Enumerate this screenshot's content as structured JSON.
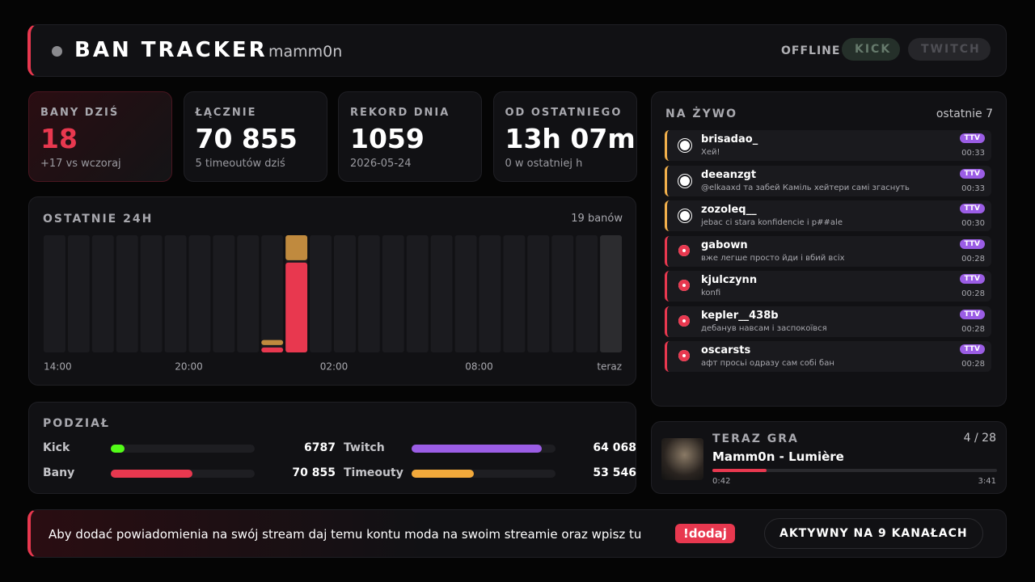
{
  "header": {
    "title": "BAN TRACKER",
    "channel": "mamm0n",
    "status": "OFFLINE",
    "platforms": [
      "KICK",
      "TWITCH"
    ]
  },
  "stats": [
    {
      "label": "BANY DZIŚ",
      "value": "18",
      "sub": "+17 vs wczoraj"
    },
    {
      "label": "ŁĄCZNIE",
      "value": "70 855",
      "sub": "5 timeoutów dziś"
    },
    {
      "label": "REKORD DNIA",
      "value": "1059",
      "sub": "2026-05-24"
    },
    {
      "label": "OD OSTATNIEGO",
      "value": "13h 07m",
      "sub": "0 w ostatniej h"
    }
  ],
  "chart_data": {
    "type": "bar",
    "stacked": true,
    "title": "OSTATNIE 24H",
    "summary": "19 banów",
    "categories": [
      "14:00",
      null,
      null,
      null,
      null,
      null,
      "20:00",
      null,
      null,
      null,
      null,
      null,
      "02:00",
      null,
      null,
      null,
      null,
      null,
      "08:00",
      null,
      null,
      null,
      null,
      "teraz"
    ],
    "series": [
      {
        "color": "#e8384f",
        "values": [
          0,
          0,
          0,
          0,
          0,
          0,
          0,
          0,
          0,
          1,
          18,
          0,
          0,
          0,
          0,
          0,
          0,
          0,
          0,
          0,
          0,
          0,
          0,
          0
        ]
      },
      {
        "color": "#c08a3e",
        "values": [
          0,
          0,
          0,
          0,
          0,
          0,
          0,
          0,
          0,
          1,
          5,
          0,
          0,
          0,
          0,
          0,
          0,
          0,
          0,
          0,
          0,
          0,
          0,
          0
        ]
      }
    ]
  },
  "split": {
    "title": "PODZIAŁ",
    "groups": [
      [
        {
          "name": "Kick",
          "value": 6787,
          "color": "#53fc18"
        },
        {
          "name": "Twitch",
          "value": 64068,
          "value_label": "64 068",
          "color": "#9b5de5"
        }
      ],
      [
        {
          "name": "Bany",
          "value": 70855,
          "value_label": "70 855",
          "color": "#e8384f"
        },
        {
          "name": "Timeouty",
          "value": 53546,
          "value_label": "53 546",
          "color": "#f2a93b"
        }
      ]
    ]
  },
  "live": {
    "title": "NA ŻYWO",
    "subtitle": "ostatnie 7",
    "items": [
      {
        "kind": "timeout",
        "user": "brisadao_",
        "message": "Хей!",
        "badge": "TTV",
        "time": "00:33"
      },
      {
        "kind": "timeout",
        "user": "deeanzgt",
        "message": "@elkaaxd та забей Каміль хейтери самі згаснуть",
        "badge": "TTV",
        "time": "00:33"
      },
      {
        "kind": "timeout",
        "user": "zozoleq__",
        "message": "jebac ci stara konfidencie i p##ale",
        "badge": "TTV",
        "time": "00:30"
      },
      {
        "kind": "ban",
        "user": "gabown",
        "message": "вже легше просто йди і вбий всіх",
        "badge": "TTV",
        "time": "00:28"
      },
      {
        "kind": "ban",
        "user": "kjulczynn",
        "message": "konfi",
        "badge": "TTV",
        "time": "00:28"
      },
      {
        "kind": "ban",
        "user": "kepler__438b",
        "message": "дебанув навсам і заспокоївся",
        "badge": "TTV",
        "time": "00:28"
      },
      {
        "kind": "ban",
        "user": "oscarsts",
        "message": "афт просьі одразу сам собі бан",
        "badge": "TTV",
        "time": "00:28"
      }
    ]
  },
  "now_playing": {
    "title": "TERAZ GRA",
    "position": "4 / 28",
    "track": "Mamm0n - Lumière",
    "elapsed": "0:42",
    "duration": "3:41"
  },
  "footer": {
    "text": "Aby dodać powiadomienia na swój stream daj temu kontu moda na swoim streamie oraz wpisz tu",
    "command": "!dodaj",
    "active": "AKTYWNY NA 9 KANAŁACH"
  }
}
